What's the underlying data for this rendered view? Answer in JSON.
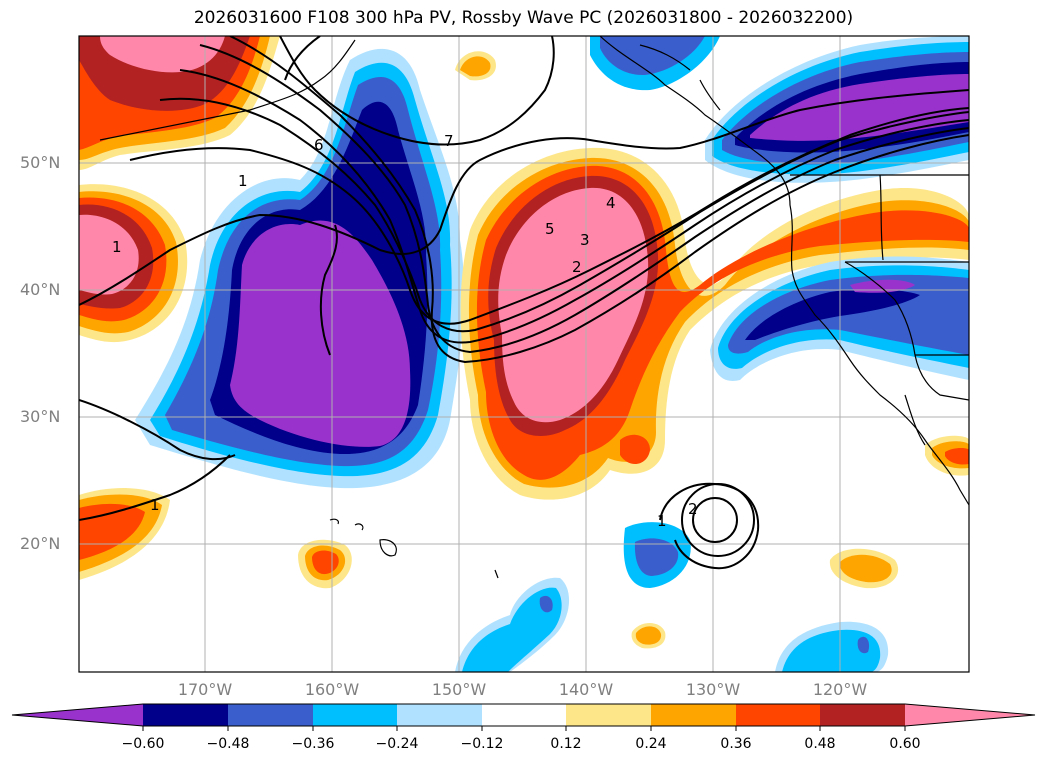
{
  "title": "2026031600 F108 300 hPa PV, Rossby Wave PC (2026031800 - 2026032200)",
  "lat_labels": [
    "50°N",
    "40°N",
    "30°N",
    "20°N"
  ],
  "lon_labels": [
    "170°W",
    "160°W",
    "150°W",
    "140°W",
    "130°W",
    "120°W"
  ],
  "colorbar": {
    "ticks": [
      "−0.60",
      "−0.48",
      "−0.36",
      "−0.24",
      "−0.12",
      "0.12",
      "0.24",
      "0.36",
      "0.48",
      "0.60"
    ],
    "colors": [
      "#9932cc",
      "#00008b",
      "#3a5fcd",
      "#00bfff",
      "#b0e2ff",
      "#ffffff",
      "#fde68a",
      "#ffa500",
      "#ff4500",
      "#b22222",
      "#ff88aa"
    ]
  },
  "contour_labels": [
    "1",
    "1",
    "1",
    "1",
    "1",
    "2",
    "2",
    "3",
    "4",
    "5",
    "6",
    "7"
  ]
}
